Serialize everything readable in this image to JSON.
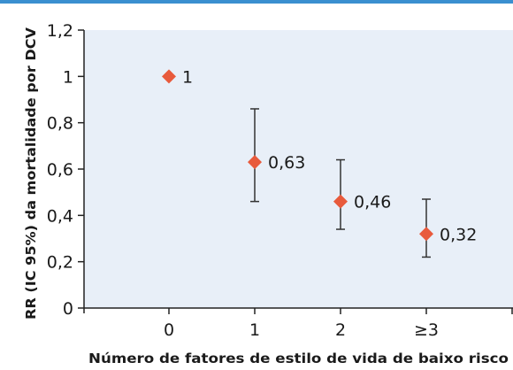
{
  "colors": {
    "plot_background": "#e8eff8",
    "marker": "#e85a3c",
    "error_bar": "#333333",
    "axis": "#222222",
    "top_rule": "#3a8fd0"
  },
  "chart_data": {
    "type": "scatter",
    "title": "",
    "xlabel": "Número de fatores de estilo de vida de baixo risco",
    "ylabel": "RR (IC 95%) da mortalidade por DCV",
    "categories": [
      "0",
      "1",
      "2",
      "≥3"
    ],
    "values": [
      1,
      0.63,
      0.46,
      0.32
    ],
    "ci_lower": [
      null,
      0.46,
      0.34,
      0.22
    ],
    "ci_upper": [
      null,
      0.86,
      0.64,
      0.47
    ],
    "data_labels": [
      "1",
      "0,63",
      "0,46",
      "0,32"
    ],
    "ylim": [
      0,
      1.2
    ],
    "yticks": [
      0,
      0.2,
      0.4,
      0.6,
      0.8,
      1,
      1.2
    ],
    "ytick_labels": [
      "0",
      "0,2",
      "0,4",
      "0,6",
      "0,8",
      "1",
      "1,2"
    ],
    "grid": false,
    "marker": "diamond"
  }
}
